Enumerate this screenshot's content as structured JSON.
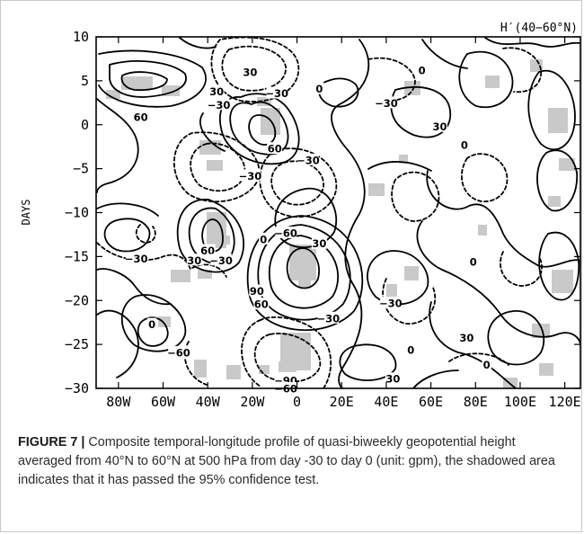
{
  "caption": {
    "label": "FIGURE 7 |",
    "text": "Composite temporal-longitude profile of quasi-biweekly geopotential height averaged from 40°N to 60°N at 500 hPa from day -30 to day 0 (unit: gpm), the shadowed area indicates that it has passed the 95% confidence test."
  },
  "chart_data": {
    "type": "contour",
    "title": "H′(40−60°N)",
    "xlabel": "",
    "ylabel": "DAYS",
    "x_ticks": [
      "80W",
      "60W",
      "40W",
      "20W",
      "0",
      "20E",
      "40E",
      "60E",
      "80E",
      "100E",
      "120E"
    ],
    "x_tick_values": [
      -80,
      -60,
      -40,
      -20,
      0,
      20,
      40,
      60,
      80,
      100,
      120
    ],
    "y_ticks": [
      "10",
      "5",
      "0",
      "−5",
      "−10",
      "−15",
      "−20",
      "−25",
      "−30"
    ],
    "y_tick_values": [
      10,
      5,
      0,
      -5,
      -10,
      -15,
      -20,
      -25,
      -30
    ],
    "xlim": [
      -90,
      127
    ],
    "ylim": [
      -30,
      10
    ],
    "contour_interval": 30,
    "shading": "light gray = passed 95% confidence test",
    "contour_labels": [
      {
        "text": "60",
        "lon": -70,
        "day": 0.9
      },
      {
        "text": "−30",
        "lon": -35,
        "day": 2.3
      },
      {
        "text": "30",
        "lon": -36,
        "day": 3.8
      },
      {
        "text": "30",
        "lon": -21,
        "day": 6.0
      },
      {
        "text": "−30",
        "lon": -9,
        "day": 3.6
      },
      {
        "text": "0",
        "lon": 10,
        "day": 4.1
      },
      {
        "text": "60",
        "lon": -10,
        "day": -2.7
      },
      {
        "text": "−30",
        "lon": -21,
        "day": -5.8
      },
      {
        "text": "−30",
        "lon": 5,
        "day": -4.0
      },
      {
        "text": "0",
        "lon": 56,
        "day": 6.2
      },
      {
        "text": "−30",
        "lon": 40,
        "day": 2.5
      },
      {
        "text": "30",
        "lon": 64,
        "day": -0.2
      },
      {
        "text": "0",
        "lon": 75,
        "day": -2.3
      },
      {
        "text": "−60",
        "lon": -5,
        "day": -12.3
      },
      {
        "text": "30",
        "lon": 10,
        "day": -13.5
      },
      {
        "text": "0",
        "lon": -15,
        "day": -13.0
      },
      {
        "text": "60",
        "lon": -40,
        "day": -14.3
      },
      {
        "text": "−30",
        "lon": -34,
        "day": -15.4
      },
      {
        "text": "30",
        "lon": -46,
        "day": -15.4
      },
      {
        "text": "−30",
        "lon": -72,
        "day": -15.2
      },
      {
        "text": "0",
        "lon": 79,
        "day": -15.6
      },
      {
        "text": "90",
        "lon": -18,
        "day": -18.9
      },
      {
        "text": "60",
        "lon": -16,
        "day": -20.4
      },
      {
        "text": "−30",
        "lon": 14,
        "day": -22.0
      },
      {
        "text": "−30",
        "lon": 42,
        "day": -20.3
      },
      {
        "text": "0",
        "lon": -65,
        "day": -22.7
      },
      {
        "text": "−60",
        "lon": -53,
        "day": -25.9
      },
      {
        "text": "0",
        "lon": 51,
        "day": -25.6
      },
      {
        "text": "30",
        "lon": 76,
        "day": -24.2
      },
      {
        "text": "0",
        "lon": 85,
        "day": -27.3
      },
      {
        "text": "30",
        "lon": 43,
        "day": -28.9
      },
      {
        "text": "−90",
        "lon": -5,
        "day": -29.1
      },
      {
        "text": "−60",
        "lon": -5,
        "day": -30.0
      }
    ]
  }
}
